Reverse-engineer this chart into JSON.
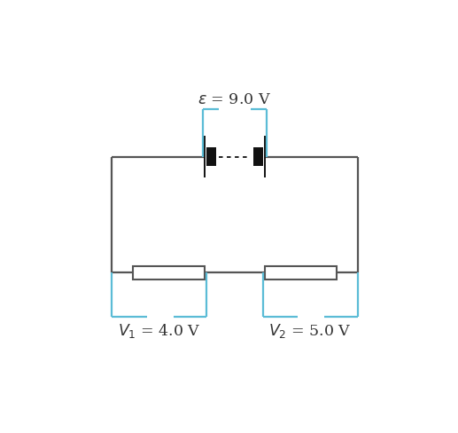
{
  "bg_color": "#ffffff",
  "circuit_color": "#555555",
  "bracket_color": "#5bbcd6",
  "battery_color": "#111111",
  "resistor_color": "#555555",
  "label_fontsize": 12.5,
  "fig_width": 5.17,
  "fig_height": 4.89
}
